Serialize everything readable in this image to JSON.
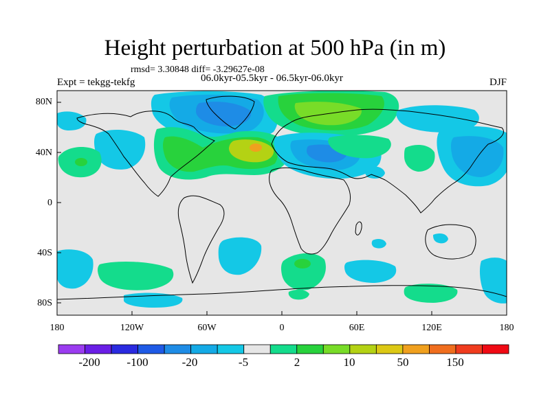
{
  "title": "Height perturbation at 500 hPa (in m)",
  "stats": "rmsd= 3.30848 diff= -3.29627e-08",
  "period": "06.0kyr-05.5kyr - 06.5kyr-06.0kyr",
  "expt": "Expt = tekgg-tekfg",
  "season": "DJF",
  "lat_ticks": [
    "80N",
    "40N",
    "0",
    "40S",
    "80S"
  ],
  "lon_ticks": [
    "180",
    "120W",
    "60W",
    "0",
    "60E",
    "120E",
    "180"
  ],
  "colorbar": {
    "labels": [
      "-200",
      "-100",
      "-20",
      "-5",
      "2",
      "10",
      "50",
      "150"
    ],
    "colors": [
      "#9b3cf0",
      "#6a1ee6",
      "#2a2ae0",
      "#1e5ae6",
      "#1e8ce6",
      "#14aae6",
      "#14c8e6",
      "#e6e6e6",
      "#14dc8c",
      "#28d23c",
      "#78dc28",
      "#b4d214",
      "#dcc814",
      "#f0a01e",
      "#f06e1e",
      "#f03c1e",
      "#f00a14"
    ]
  },
  "colors": {
    "land_bg": "#e6e6e6",
    "light_blue": "#14c8e6",
    "mid_blue": "#14aae6",
    "blue": "#1e8ce6",
    "dark_blue": "#1e5ae6",
    "green_teal": "#14dc8c",
    "green": "#28d23c",
    "yellow_green": "#78dc28",
    "yellow": "#b4d214",
    "orange": "#f0a01e"
  }
}
